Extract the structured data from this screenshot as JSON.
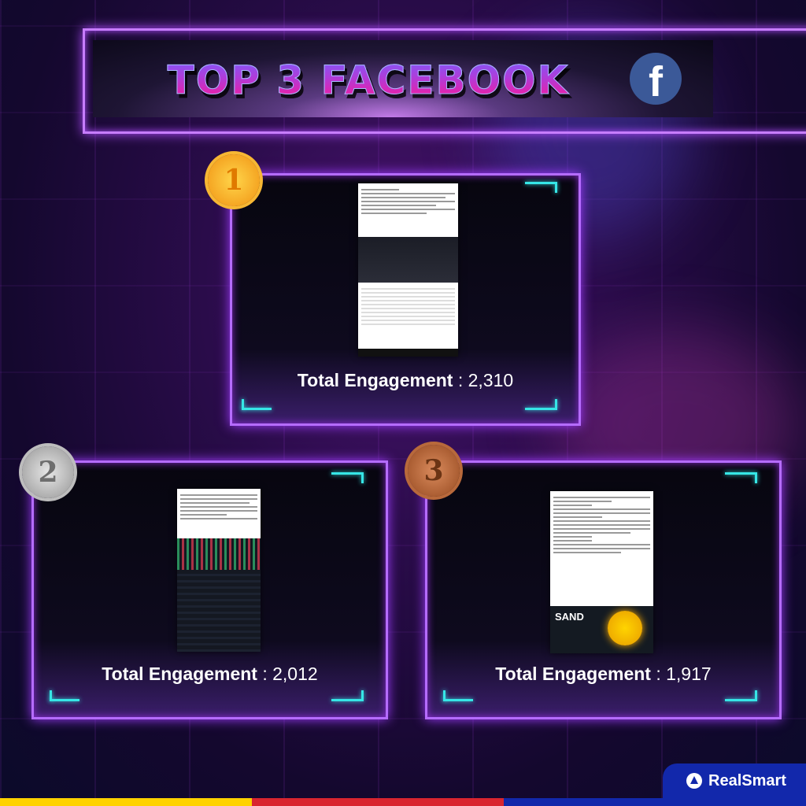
{
  "header": {
    "title": "TOP 3 FACEBOOK",
    "platform_icon": "facebook-icon",
    "platform_letter": "f"
  },
  "posts": [
    {
      "rank": "1",
      "medal": "gold",
      "label": "Total Engagement",
      "separator": ":",
      "value": "2,310"
    },
    {
      "rank": "2",
      "medal": "silver",
      "label": "Total Engagement",
      "separator": ":",
      "value": "2,012"
    },
    {
      "rank": "3",
      "medal": "bronze",
      "label": "Total Engagement",
      "separator": ":",
      "value": "1,917",
      "image_text": "SAND"
    }
  ],
  "footer": {
    "brand": "RealSmart",
    "stripe_colors": [
      "#ffd200",
      "#d9252f",
      "#1228ab"
    ]
  },
  "colors": {
    "neon_frame": "#b56cff",
    "accent_corner": "#36e6e6",
    "facebook": "#3b5998"
  }
}
